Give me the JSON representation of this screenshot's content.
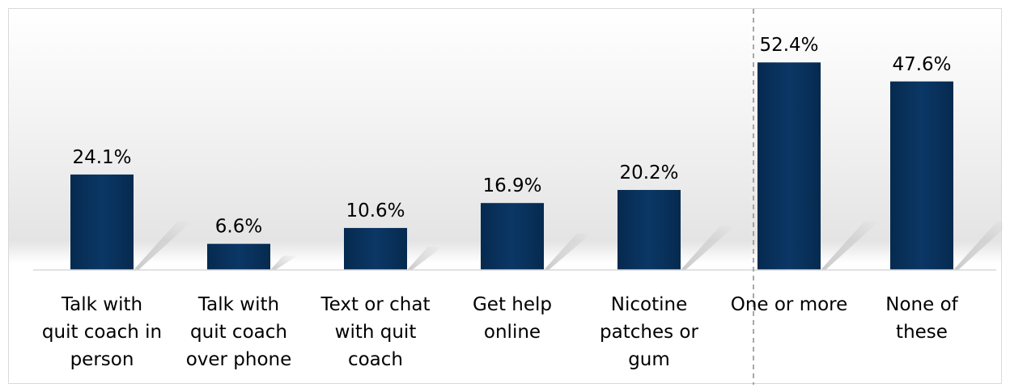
{
  "colors": {
    "bar": "#0b3766",
    "bar_dark": "#062a4f",
    "axis": "#d9d9d9",
    "divider": "#8c8c8c",
    "shadow": "#9a9a9a"
  },
  "chart_data": {
    "type": "bar",
    "categories": [
      [
        "Talk with",
        "quit coach in",
        "person"
      ],
      [
        "Talk with",
        "quit coach",
        "over phone"
      ],
      [
        "Text or chat",
        "with quit",
        "coach"
      ],
      [
        "Get help",
        "online"
      ],
      [
        "Nicotine",
        "patches or",
        "gum"
      ],
      [
        "One or more"
      ],
      [
        "None of",
        "these"
      ]
    ],
    "values": [
      24.1,
      6.6,
      10.6,
      16.9,
      20.2,
      52.4,
      47.6
    ],
    "value_labels": [
      "24.1%",
      "6.6%",
      "10.6%",
      "16.9%",
      "20.2%",
      "52.4%",
      "47.6%"
    ],
    "title": "",
    "xlabel": "",
    "ylabel": "",
    "ylim": [
      0,
      60
    ],
    "grid": false,
    "legend": "none",
    "divider_after_category_index": 4
  }
}
